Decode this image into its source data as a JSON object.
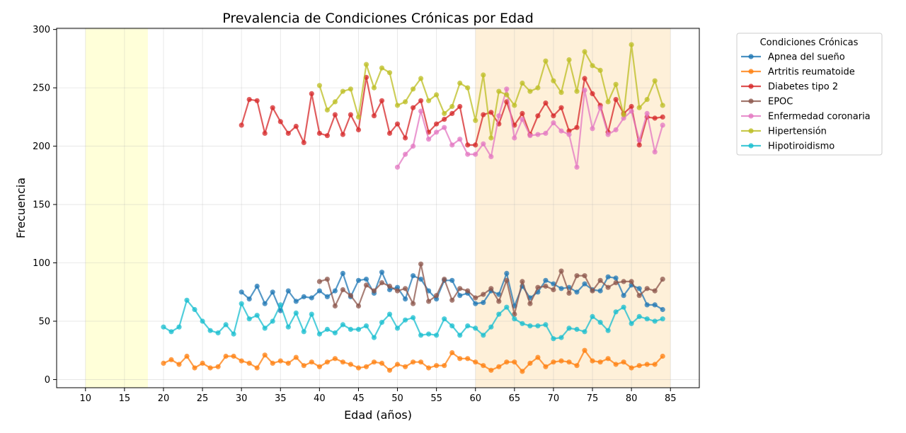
{
  "chart_data": {
    "type": "line",
    "title": "Prevalencia de Condiciones Crónicas por Edad",
    "xlabel": "Edad (años)",
    "ylabel": "Frecuencia",
    "xlim": [
      6.3,
      88.7
    ],
    "ylim": [
      -7,
      301
    ],
    "x_ticks": [
      10,
      15,
      20,
      25,
      30,
      35,
      40,
      45,
      50,
      55,
      60,
      65,
      70,
      75,
      80,
      85
    ],
    "y_ticks": [
      0,
      50,
      100,
      150,
      200,
      250,
      300
    ],
    "grid": true,
    "legend": {
      "title": "Condiciones Crónicas",
      "placement": "outside-right-top"
    },
    "shaded_regions": [
      {
        "from": 10,
        "to": 18,
        "color": "#ffffcc"
      },
      {
        "from": 60,
        "to": 85,
        "color": "#fdebcc"
      }
    ],
    "series": [
      {
        "name": "Apnea del sueño",
        "color": "#1f77b4",
        "x_start": 30,
        "values": [
          75,
          69,
          80,
          65,
          75,
          59,
          76,
          67,
          71,
          70,
          76,
          71,
          76,
          91,
          71,
          85,
          86,
          74,
          92,
          77,
          79,
          69,
          89,
          86,
          76,
          69,
          85,
          85,
          72,
          74,
          65,
          66,
          76,
          73,
          91,
          63,
          80,
          70,
          75,
          85,
          82,
          78,
          79,
          75,
          82,
          77,
          76,
          88,
          87,
          72,
          81,
          78,
          64,
          64,
          60
        ]
      },
      {
        "name": "Artritis reumatoide",
        "color": "#ff7f0e",
        "x_start": 20,
        "values": [
          14,
          17,
          13,
          20,
          10,
          14,
          10,
          11,
          20,
          20,
          16,
          14,
          10,
          21,
          14,
          16,
          14,
          19,
          12,
          15,
          11,
          15,
          18,
          15,
          13,
          10,
          11,
          15,
          14,
          8,
          13,
          11,
          15,
          15,
          10,
          12,
          12,
          23,
          18,
          18,
          15,
          12,
          8,
          11,
          15,
          15,
          7,
          14,
          19,
          11,
          15,
          16,
          15,
          12,
          25,
          16,
          15,
          18,
          13,
          15,
          10,
          12,
          13,
          13,
          20
        ]
      },
      {
        "name": "Diabetes tipo 2",
        "color": "#d62728",
        "x_start": 30,
        "values": [
          218,
          240,
          239,
          211,
          233,
          221,
          211,
          217,
          203,
          245,
          211,
          209,
          227,
          210,
          227,
          214,
          259,
          226,
          239,
          211,
          219,
          207,
          233,
          239,
          212,
          219,
          223,
          228,
          234,
          201,
          201,
          227,
          229,
          219,
          238,
          218,
          228,
          210,
          226,
          237,
          226,
          233,
          213,
          216,
          258,
          245,
          235,
          212,
          240,
          228,
          234,
          201,
          225,
          224,
          225
        ]
      },
      {
        "name": "EPOC",
        "color": "#8c564b",
        "x_start": 40,
        "values": [
          84,
          86,
          63,
          77,
          72,
          63,
          81,
          76,
          83,
          80,
          76,
          78,
          65,
          99,
          67,
          72,
          86,
          68,
          78,
          76,
          70,
          73,
          78,
          67,
          85,
          56,
          84,
          65,
          79,
          80,
          77,
          93,
          74,
          89,
          89,
          76,
          85,
          79,
          83,
          84,
          84,
          72,
          78,
          76,
          86
        ]
      },
      {
        "name": "Enfermedad coronaria",
        "color": "#e377c2",
        "x_start": 50,
        "values": [
          182,
          193,
          200,
          230,
          206,
          212,
          216,
          201,
          206,
          193,
          193,
          202,
          191,
          226,
          249,
          207,
          223,
          209,
          210,
          211,
          220,
          213,
          210,
          182,
          248,
          215,
          233,
          210,
          214,
          224,
          230,
          205,
          228,
          195,
          218
        ]
      },
      {
        "name": "Hipertensión",
        "color": "#bcbd22",
        "x_start": 40,
        "values": [
          252,
          231,
          238,
          247,
          249,
          225,
          270,
          250,
          267,
          263,
          235,
          238,
          249,
          258,
          239,
          244,
          228,
          234,
          254,
          250,
          222,
          261,
          207,
          247,
          244,
          235,
          254,
          247,
          250,
          273,
          256,
          246,
          274,
          247,
          281,
          269,
          265,
          238,
          253,
          227,
          287,
          233,
          240,
          256,
          235
        ]
      },
      {
        "name": "Hipotiroidismo",
        "color": "#17becf",
        "x_start": 20,
        "values": [
          45,
          41,
          45,
          68,
          60,
          50,
          42,
          40,
          47,
          39,
          65,
          52,
          55,
          44,
          50,
          64,
          45,
          57,
          41,
          56,
          39,
          43,
          40,
          47,
          43,
          43,
          46,
          36,
          49,
          56,
          44,
          51,
          53,
          38,
          39,
          38,
          52,
          46,
          38,
          46,
          44,
          38,
          45,
          56,
          62,
          52,
          48,
          46,
          46,
          47,
          35,
          36,
          44,
          43,
          41,
          54,
          49,
          42,
          58,
          62,
          48,
          54,
          52,
          50,
          52
        ]
      }
    ]
  }
}
